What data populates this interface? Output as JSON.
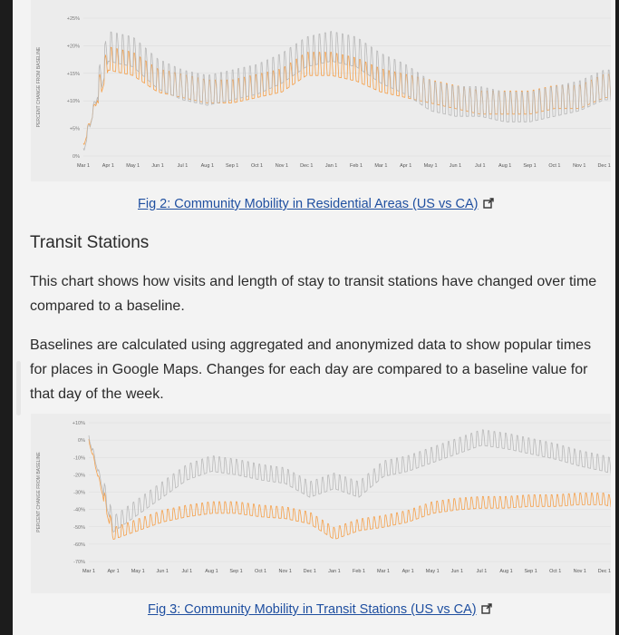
{
  "months": [
    "Mar 1",
    "Apr 1",
    "May 1",
    "Jun 1",
    "Jul 1",
    "Aug 1",
    "Sep 1",
    "Oct 1",
    "Nov 1",
    "Dec 1",
    "Jan 1",
    "Feb 1",
    "Mar 1",
    "Apr 1",
    "May 1",
    "Jun 1",
    "Jul 1",
    "Aug 1",
    "Sep 1",
    "Oct 1",
    "Nov 1",
    "Dec 1",
    "Jan 1"
  ],
  "colors": {
    "us": "#f5a04a",
    "ca": "#b9b9b9",
    "link": "#1f4fa0"
  },
  "fig2": {
    "caption": "Fig 2: Community Mobility in Residential Areas (US vs CA)"
  },
  "section": {
    "title": "Transit Stations",
    "para1": "This chart shows how visits and length of stay to transit stations have changed over time compared to a baseline.",
    "para2": "Baselines are calculated using aggregated and anonymized data to show popular times for places in Google Maps. Changes for each day are compared to a baseline value for that day of the week."
  },
  "fig3": {
    "caption": "Fig 3: Community Mobility in Transit Stations (US vs CA)"
  },
  "chart_data": [
    {
      "type": "line",
      "ylabel": "PERCENT CHANGE FROM BASELINE",
      "yticks": [
        "+25%",
        "+20%",
        "+15%",
        "+10%",
        "+5%",
        "0%"
      ],
      "ylim": [
        0,
        25
      ],
      "x": [
        "Mar 1",
        "Apr 1",
        "May 1",
        "Jun 1",
        "Jul 1",
        "Aug 1",
        "Sep 1",
        "Oct 1",
        "Nov 1",
        "Dec 1",
        "Jan 1",
        "Feb 1",
        "Mar 1",
        "Apr 1",
        "May 1",
        "Jun 1",
        "Jul 1",
        "Aug 1",
        "Sep 1",
        "Oct 1",
        "Nov 1",
        "Dec 1",
        "Jan 1"
      ],
      "series": [
        {
          "values": [
            2,
            17,
            16,
            13,
            12,
            11,
            11,
            12,
            13,
            16,
            16,
            15,
            13,
            12,
            11,
            10,
            9,
            9,
            9,
            10,
            10,
            12,
            12
          ]
        },
        {
          "values": [
            1,
            19,
            18,
            14,
            12,
            11,
            12,
            13,
            15,
            18,
            19,
            18,
            15,
            13,
            10,
            9,
            9,
            8,
            8,
            9,
            10,
            12,
            12
          ]
        }
      ]
    },
    {
      "type": "line",
      "ylabel": "PERCENT CHANGE FROM BASELINE",
      "yticks": [
        "+10%",
        "0%",
        "-10%",
        "-20%",
        "-30%",
        "-40%",
        "-50%",
        "-60%",
        "-70%"
      ],
      "ylim": [
        -70,
        10
      ],
      "x": [
        "Mar 1",
        "Apr 1",
        "May 1",
        "Jun 1",
        "Jul 1",
        "Aug 1",
        "Sep 1",
        "Oct 1",
        "Nov 1",
        "Dec 1",
        "Jan 1",
        "Feb 1",
        "Mar 1",
        "Apr 1",
        "May 1",
        "Jun 1",
        "Jul 1",
        "Aug 1",
        "Sep 1",
        "Oct 1",
        "Nov 1",
        "Dec 1",
        "Jan 1"
      ],
      "series": [
        {
          "values": [
            0,
            -55,
            -50,
            -45,
            -42,
            -40,
            -40,
            -42,
            -43,
            -46,
            -55,
            -50,
            -48,
            -45,
            -40,
            -38,
            -37,
            -37,
            -36,
            -36,
            -35,
            -35,
            -40
          ]
        },
        {
          "values": [
            2,
            -50,
            -40,
            -30,
            -20,
            -15,
            -17,
            -20,
            -22,
            -30,
            -25,
            -30,
            -18,
            -15,
            -10,
            -5,
            0,
            -2,
            -5,
            -8,
            -12,
            -15,
            -20
          ]
        }
      ]
    }
  ]
}
